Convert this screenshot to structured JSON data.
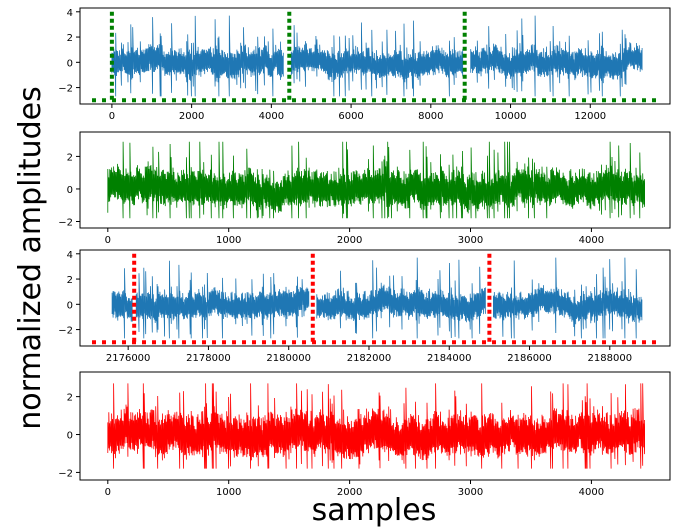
{
  "figure": {
    "xlabel": "samples",
    "ylabel": "normalized amplitudes"
  },
  "chart_data": [
    {
      "type": "line",
      "series": [
        {
          "color": "#1f77b4",
          "x_range": [
            0,
            13300
          ],
          "segments": [
            [
              0,
              4300
            ],
            [
              4500,
              8800
            ],
            [
              9000,
              13300
            ]
          ]
        }
      ],
      "markers": {
        "color": "#008000",
        "x": [
          0,
          4450,
          8850
        ],
        "baseline_y": -3.0,
        "top_y": 4.0
      },
      "xlim": [
        -800,
        14000
      ],
      "ylim": [
        -3.3,
        4.3
      ],
      "xticks": [
        0,
        2000,
        4000,
        6000,
        8000,
        10000,
        12000
      ],
      "yticks": [
        -2,
        0,
        2,
        4
      ],
      "grid": false
    },
    {
      "type": "line",
      "series": [
        {
          "color": "#008000",
          "x_range": [
            0,
            4440
          ]
        }
      ],
      "xlim": [
        -230,
        4650
      ],
      "ylim": [
        -2.4,
        3.5
      ],
      "xticks": [
        0,
        1000,
        2000,
        3000,
        4000
      ],
      "yticks": [
        -2,
        0,
        2
      ],
      "grid": false
    },
    {
      "type": "line",
      "series": [
        {
          "color": "#1f77b4",
          "x_range": [
            2175600,
            2188800
          ],
          "segments": [
            [
              2175600,
              2176100
            ],
            [
              2176200,
              2180500
            ],
            [
              2180700,
              2184900
            ],
            [
              2185100,
              2188800
            ]
          ]
        }
      ],
      "markers": {
        "color": "#ff0000",
        "x": [
          2176150,
          2180600,
          2185000
        ],
        "baseline_y": -3.0,
        "top_y": 4.0
      },
      "xlim": [
        2174800,
        2189500
      ],
      "ylim": [
        -3.3,
        4.3
      ],
      "xticks": [
        2176000,
        2178000,
        2180000,
        2182000,
        2184000,
        2186000,
        2188000
      ],
      "yticks": [
        -2,
        0,
        2,
        4
      ],
      "grid": false
    },
    {
      "type": "line",
      "series": [
        {
          "color": "#ff0000",
          "x_range": [
            0,
            4440
          ]
        }
      ],
      "xlim": [
        -230,
        4650
      ],
      "ylim": [
        -2.4,
        3.3
      ],
      "xticks": [
        0,
        1000,
        2000,
        3000,
        4000
      ],
      "yticks": [
        -2,
        0,
        2
      ],
      "grid": false
    }
  ]
}
